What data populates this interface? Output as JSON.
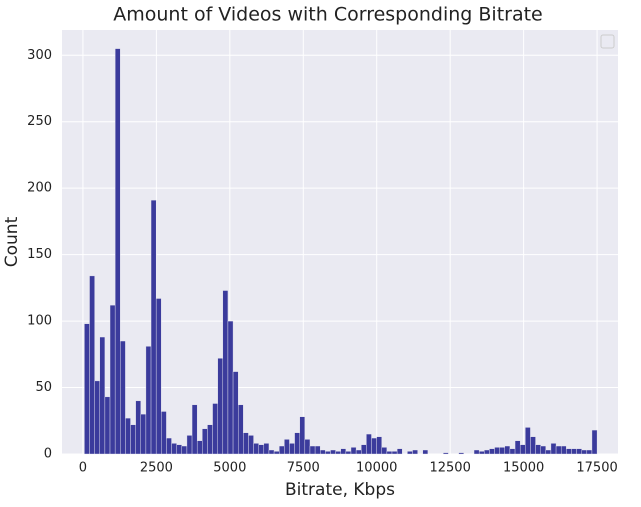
{
  "chart_data": {
    "type": "histogram",
    "title": "Amount of Videos with Corresponding Bitrate",
    "x_label": "Bitrate, Kbps",
    "y_label": "Count",
    "color": "#3b3b9c",
    "bins": [
      50,
      224.5,
      399,
      573.5,
      748,
      922.5,
      1097,
      1271.5,
      1446,
      1620.5,
      1795,
      1969.5,
      2144,
      2318.5,
      2493,
      2667.5,
      2842,
      3016.5,
      3191,
      3365.5,
      3540,
      3714.5,
      3889,
      4063.5,
      4238,
      4412.5,
      4587,
      4761.5,
      4936,
      5110.5,
      5285,
      5459.5,
      5634,
      5808.5,
      5983,
      6157.5,
      6332,
      6506.5,
      6681,
      6855.5,
      7030,
      7204.5,
      7379,
      7553.5,
      7728,
      7902.5,
      8077,
      8251.5,
      8426,
      8600.5,
      8775,
      8949.5,
      9124,
      9298.5,
      9473,
      9647.5,
      9822,
      9996.5,
      10171,
      10345.5,
      10520,
      10694.5,
      10869,
      11043.5,
      11218,
      11392.5,
      11567,
      11741.5,
      11916,
      12090.5,
      12265,
      12439.5,
      12614,
      12788.5,
      12963,
      13137.5,
      13312,
      13486.5,
      13661,
      13835.5,
      14010,
      14184.5,
      14359,
      14533.5,
      14708,
      14882.5,
      15057,
      15231.5,
      15406,
      15580.5,
      15755,
      15929.5,
      16104,
      16278.5,
      16453,
      16627.5,
      16802,
      16976.5,
      17151,
      17325.5,
      17500
    ],
    "values": [
      98,
      134,
      55,
      88,
      43,
      112,
      305,
      85,
      27,
      22,
      40,
      30,
      81,
      191,
      117,
      32,
      12,
      8,
      7,
      6,
      14,
      37,
      10,
      19,
      22,
      38,
      72,
      123,
      100,
      62,
      37,
      16,
      14,
      8,
      7,
      8,
      3,
      2,
      6,
      11,
      8,
      16,
      28,
      11,
      6,
      6,
      3,
      2,
      3,
      2,
      4,
      2,
      5,
      3,
      7,
      15,
      12,
      13,
      5,
      2,
      2,
      4,
      0,
      2,
      3,
      0,
      3,
      0,
      0,
      0,
      1,
      0,
      0,
      1,
      0,
      0,
      3,
      2,
      3,
      4,
      5,
      5,
      6,
      4,
      10,
      7,
      20,
      13,
      7,
      6,
      3,
      8,
      6,
      6,
      4,
      4,
      4,
      3,
      3,
      18
    ],
    "xlim": [
      -712,
      18212
    ],
    "ylim": [
      0,
      319
    ],
    "xticks": [
      0,
      2500,
      5000,
      7500,
      10000,
      12500,
      15000,
      17500
    ],
    "yticks": [
      0,
      50,
      100,
      150,
      200,
      250,
      300
    ],
    "grid": true
  }
}
